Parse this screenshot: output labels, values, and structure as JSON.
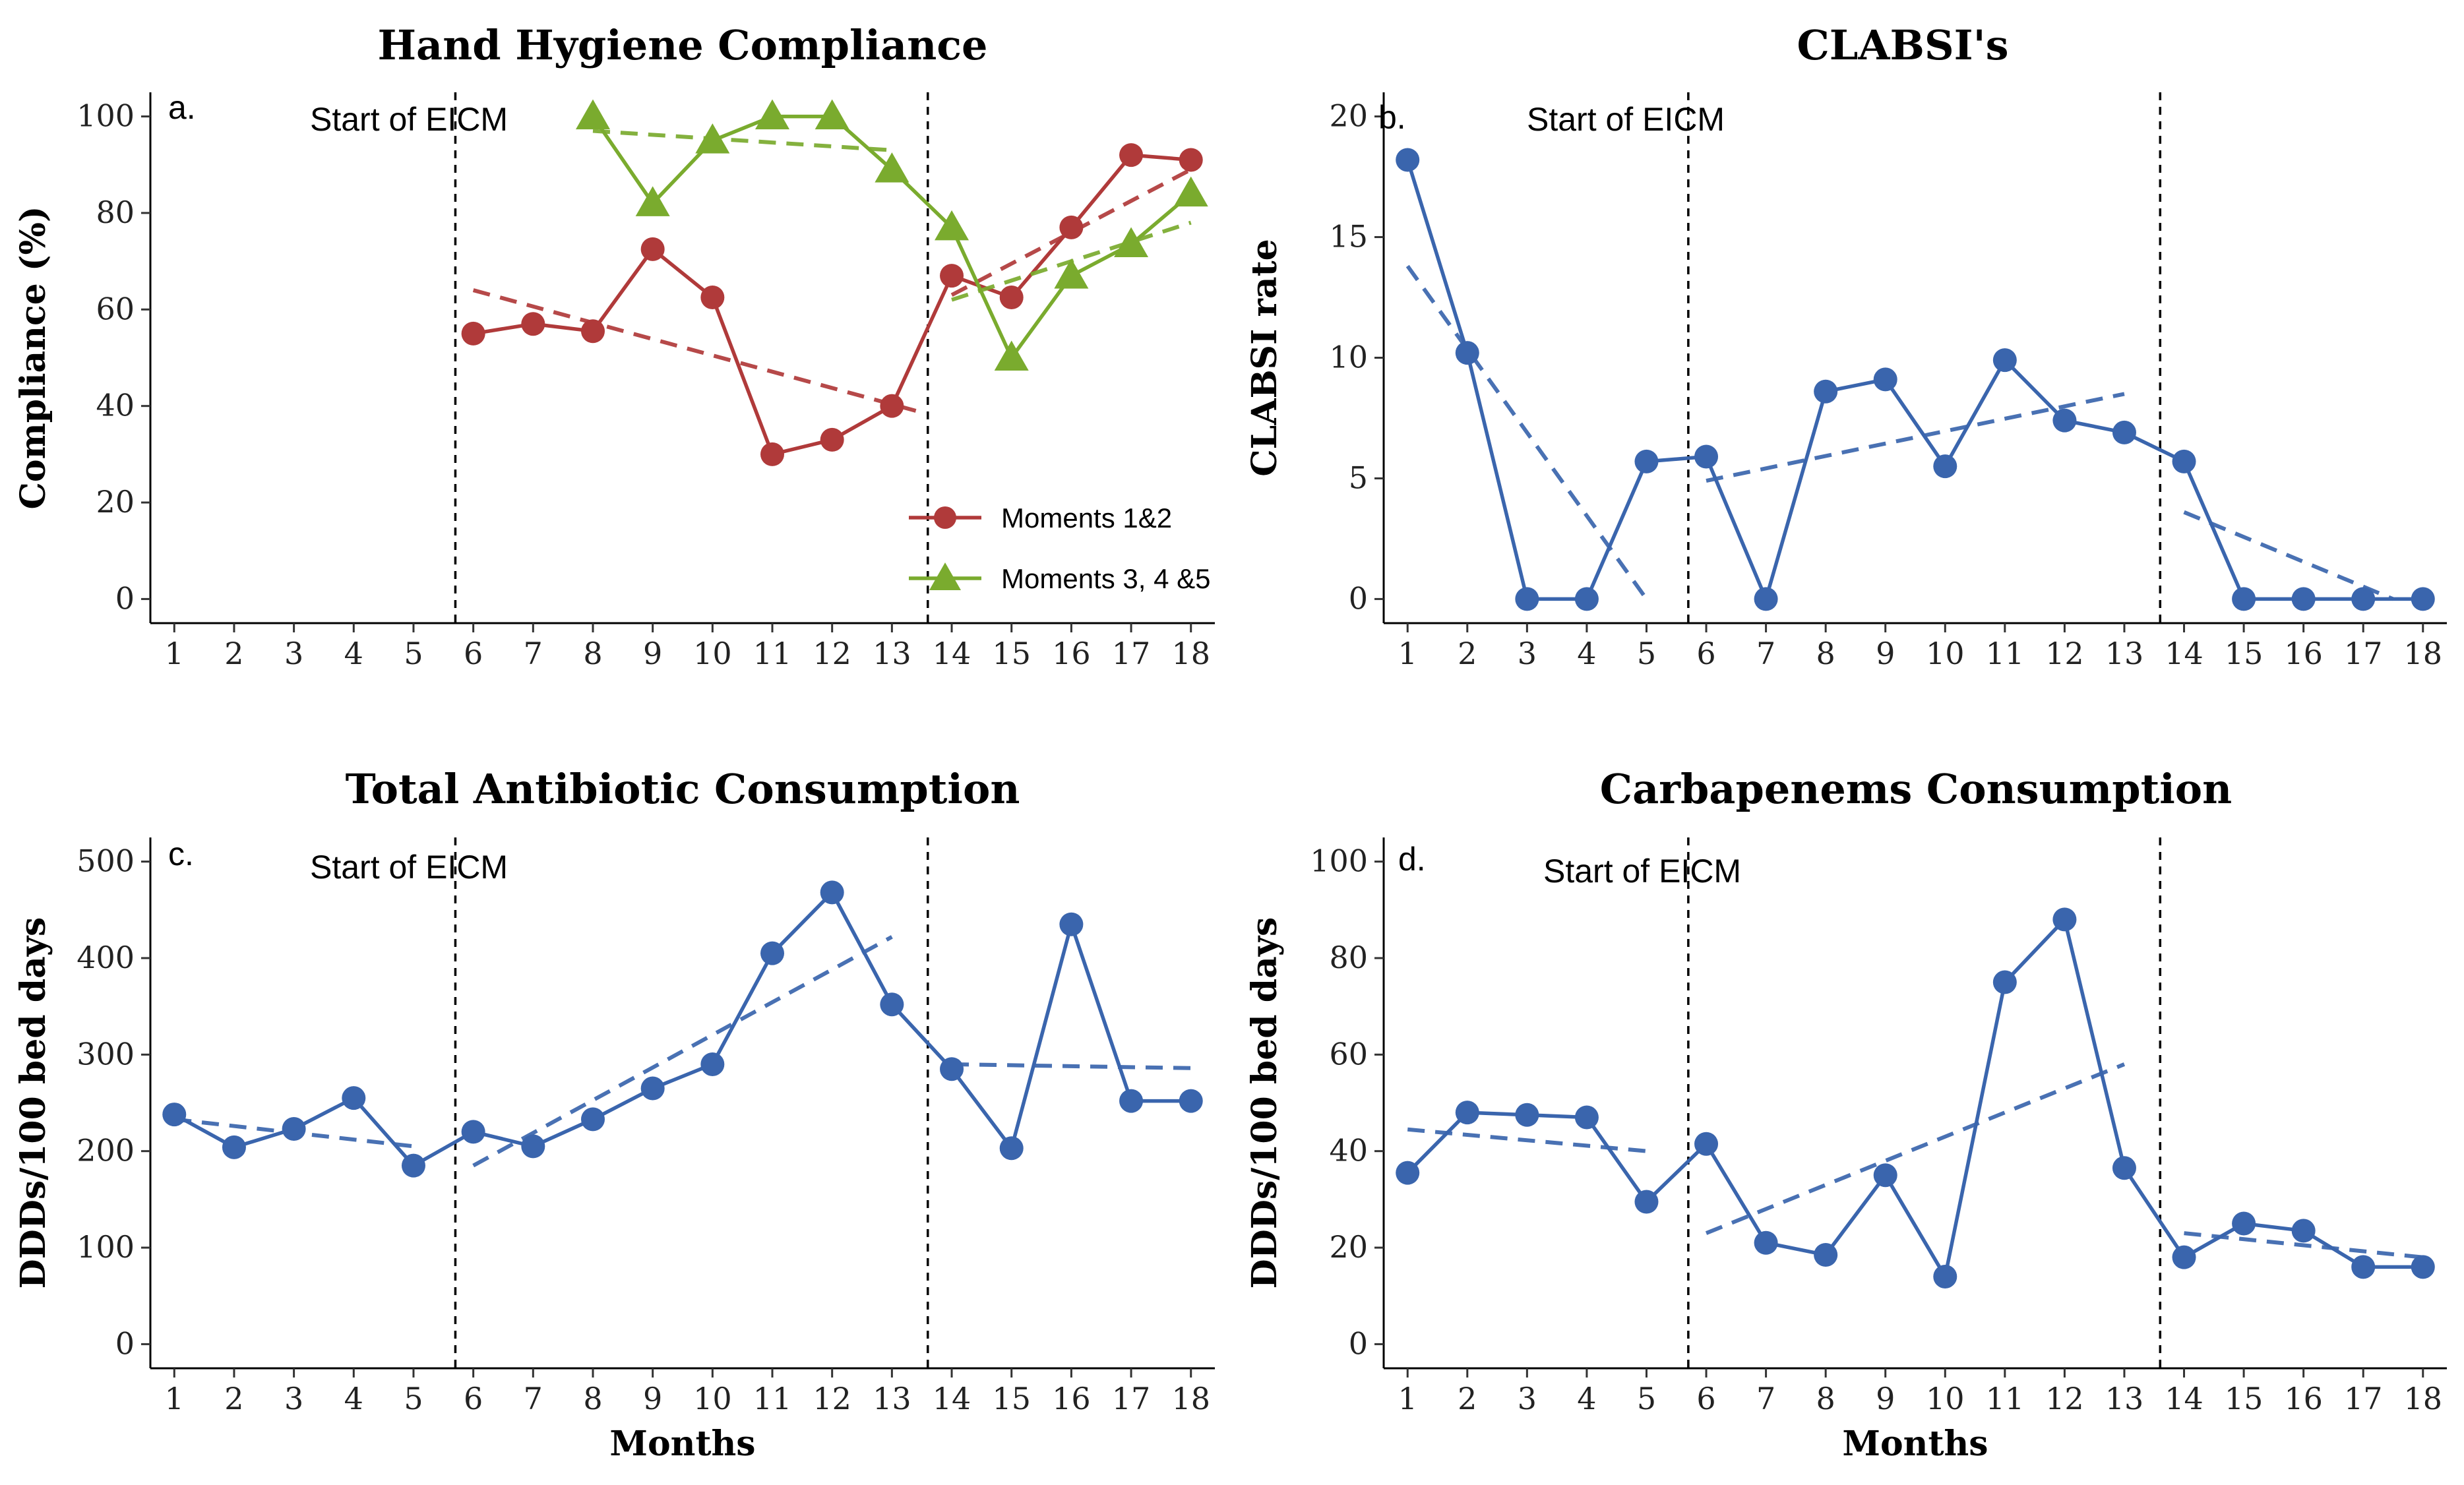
{
  "chart_data": [
    {
      "id": "a",
      "type": "line",
      "title": "Hand Hygiene Compliance",
      "panel_label": "a.",
      "ylabel": "Compliance (%)",
      "xlabel": "",
      "ylim": [
        -5,
        105
      ],
      "yticks": [
        0,
        20,
        40,
        60,
        80,
        100
      ],
      "xlim": [
        0.6,
        18.4
      ],
      "xticks": [
        1,
        2,
        3,
        4,
        5,
        6,
        7,
        8,
        9,
        10,
        11,
        12,
        13,
        14,
        15,
        16,
        17,
        18
      ],
      "vlines": [
        5.7,
        13.6
      ],
      "annotation": "Start of EICM",
      "legend": {
        "position": "bottom-right",
        "entries": [
          "Moments 1&2",
          "Moments 3, 4 &5"
        ]
      },
      "series": [
        {
          "name": "Moments 1&2",
          "color": "#b03a3a",
          "marker": "circle",
          "x": [
            6,
            7,
            8,
            9,
            10,
            11,
            12,
            13,
            14,
            15,
            16,
            17,
            18
          ],
          "values": [
            55,
            57,
            55.5,
            72.5,
            62.5,
            30,
            33,
            40,
            67,
            62.5,
            77,
            92,
            91
          ],
          "trends": [
            {
              "x": [
                6,
                13.4
              ],
              "y": [
                64,
                39
              ]
            },
            {
              "x": [
                14,
                18
              ],
              "y": [
                63,
                89
              ]
            }
          ]
        },
        {
          "name": "Moments 3, 4 &5",
          "color": "#7aab2e",
          "marker": "triangle",
          "x": [
            8,
            9,
            10,
            11,
            12,
            13,
            14,
            15,
            16,
            17,
            18
          ],
          "values": [
            100,
            82,
            95,
            100,
            100,
            89,
            77,
            50,
            67,
            73.5,
            84
          ],
          "trends": [
            {
              "x": [
                8,
                13
              ],
              "y": [
                97,
                93
              ]
            },
            {
              "x": [
                14,
                18
              ],
              "y": [
                62,
                78
              ]
            }
          ]
        }
      ]
    },
    {
      "id": "b",
      "type": "line",
      "title": "CLABSI's",
      "panel_label": "b.",
      "ylabel": "CLABSI rate",
      "xlabel": "",
      "ylim": [
        -1,
        21
      ],
      "yticks": [
        0,
        5,
        10,
        15,
        20
      ],
      "xlim": [
        0.6,
        18.4
      ],
      "xticks": [
        1,
        2,
        3,
        4,
        5,
        6,
        7,
        8,
        9,
        10,
        11,
        12,
        13,
        14,
        15,
        16,
        17,
        18
      ],
      "vlines": [
        5.7,
        13.6
      ],
      "annotation": "Start of EICM",
      "series": [
        {
          "name": "CLABSI rate",
          "color": "#3a65ad",
          "marker": "circle",
          "x": [
            1,
            2,
            3,
            4,
            5,
            6,
            7,
            8,
            9,
            10,
            11,
            12,
            13,
            14,
            15,
            16,
            17,
            18
          ],
          "values": [
            18.2,
            10.2,
            0,
            0,
            5.7,
            5.9,
            0,
            8.6,
            9.1,
            5.5,
            9.9,
            7.4,
            6.9,
            5.7,
            0,
            0,
            0,
            0
          ],
          "trends": [
            {
              "x": [
                1,
                5
              ],
              "y": [
                13.8,
                0
              ]
            },
            {
              "x": [
                6,
                13
              ],
              "y": [
                4.9,
                8.5
              ]
            },
            {
              "x": [
                14,
                17.5
              ],
              "y": [
                3.6,
                0
              ]
            }
          ]
        }
      ]
    },
    {
      "id": "c",
      "type": "line",
      "title": "Total Antibiotic Consumption",
      "panel_label": "c.",
      "ylabel": "DDDs/100 bed days",
      "xlabel": "Months",
      "ylim": [
        -25,
        525
      ],
      "yticks": [
        0,
        100,
        200,
        300,
        400,
        500
      ],
      "xlim": [
        0.6,
        18.4
      ],
      "xticks": [
        1,
        2,
        3,
        4,
        5,
        6,
        7,
        8,
        9,
        10,
        11,
        12,
        13,
        14,
        15,
        16,
        17,
        18
      ],
      "vlines": [
        5.7,
        13.6
      ],
      "annotation": "Start of EICM",
      "series": [
        {
          "name": "Total antibiotic",
          "color": "#3a65ad",
          "marker": "circle",
          "x": [
            1,
            2,
            3,
            4,
            5,
            6,
            7,
            8,
            9,
            10,
            11,
            12,
            13,
            14,
            15,
            16,
            17,
            18
          ],
          "values": [
            238,
            204,
            223,
            255,
            185,
            220,
            205,
            233,
            265,
            290,
            405,
            468,
            352,
            285,
            203,
            435,
            252,
            252
          ],
          "trends": [
            {
              "x": [
                1,
                5
              ],
              "y": [
                233,
                205
              ]
            },
            {
              "x": [
                6,
                13
              ],
              "y": [
                185,
                422
              ]
            },
            {
              "x": [
                14,
                18
              ],
              "y": [
                290,
                286
              ]
            }
          ]
        }
      ]
    },
    {
      "id": "d",
      "type": "line",
      "title": "Carbapenems Consumption",
      "panel_label": "d.",
      "ylabel": "DDDs/100 bed days",
      "xlabel": "Months",
      "ylim": [
        -5,
        105
      ],
      "yticks": [
        0,
        20,
        40,
        60,
        80,
        100
      ],
      "xlim": [
        0.6,
        18.4
      ],
      "xticks": [
        1,
        2,
        3,
        4,
        5,
        6,
        7,
        8,
        9,
        10,
        11,
        12,
        13,
        14,
        15,
        16,
        17,
        18
      ],
      "vlines": [
        5.7,
        13.6
      ],
      "annotation": "Start of EICM",
      "series": [
        {
          "name": "Carbapenems",
          "color": "#3a65ad",
          "marker": "circle",
          "x": [
            1,
            2,
            3,
            4,
            5,
            6,
            7,
            8,
            9,
            10,
            11,
            12,
            13,
            14,
            15,
            16,
            17,
            18
          ],
          "values": [
            35.5,
            48,
            47.5,
            47,
            29.5,
            41.5,
            21,
            18.5,
            35,
            14,
            75,
            88,
            36.5,
            18,
            25,
            23.5,
            16,
            16
          ],
          "trends": [
            {
              "x": [
                1,
                5
              ],
              "y": [
                44.5,
                40
              ]
            },
            {
              "x": [
                6,
                13
              ],
              "y": [
                23,
                58
              ]
            },
            {
              "x": [
                14,
                18
              ],
              "y": [
                23,
                18
              ]
            }
          ]
        }
      ]
    }
  ]
}
